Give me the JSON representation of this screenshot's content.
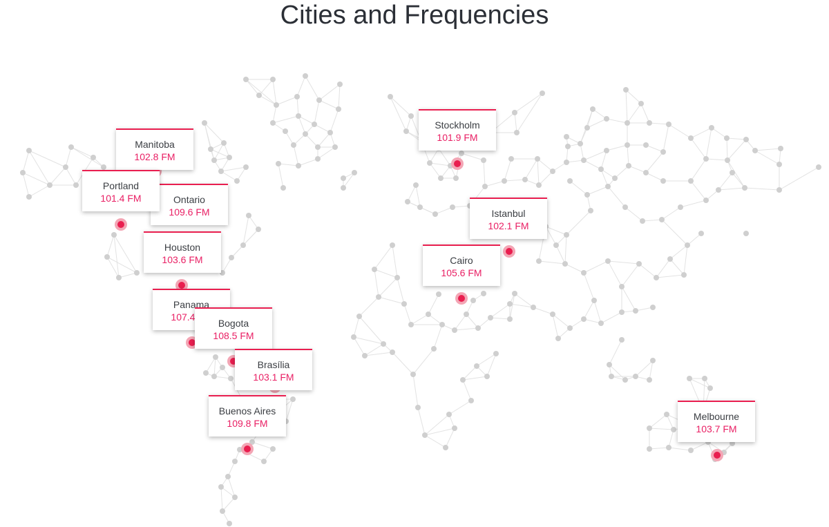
{
  "title": "Cities and Frequencies",
  "accent_color": "#e91e4f",
  "marker_halo_color": "#f3a6b5",
  "node_color": "#cfcfcf",
  "edge_color": "#e2e2e2",
  "cities": [
    {
      "name": "Manitoba",
      "frequency": "102.8 FM"
    },
    {
      "name": "Portland",
      "frequency": "101.4 FM"
    },
    {
      "name": "Ontario",
      "frequency": "109.6 FM"
    },
    {
      "name": "Houston",
      "frequency": "103.6 FM"
    },
    {
      "name": "Panama",
      "frequency": "107.4 FM"
    },
    {
      "name": "Bogota",
      "frequency": "108.5 FM"
    },
    {
      "name": "Brasília",
      "frequency": "103.1 FM"
    },
    {
      "name": "Buenos Aires",
      "frequency": "109.8 FM"
    },
    {
      "name": "Stockholm",
      "frequency": "101.9 FM"
    },
    {
      "name": "Istanbul",
      "frequency": "102.1 FM"
    },
    {
      "name": "Cairo",
      "frequency": "105.6 FM"
    },
    {
      "name": "Melbourne",
      "frequency": "103.7 FM"
    }
  ]
}
